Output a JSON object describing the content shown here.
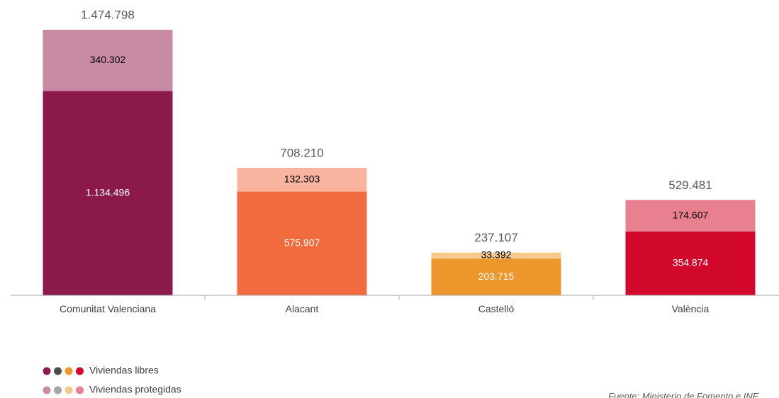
{
  "chart_data": {
    "type": "stacked-bar",
    "categories": [
      "Comunitat Valenciana",
      "Alacant",
      "Castelló",
      "València"
    ],
    "series": [
      {
        "name": "Viviendas libres",
        "colors": [
          "#8b1a4a",
          "#f26b3e",
          "#ec962c",
          "#d2072c"
        ],
        "legend_colors": [
          "#8b1a4a",
          "#4d4d4d",
          "#ec962c",
          "#d2072c"
        ],
        "label_color": "#ffffff",
        "values": [
          1134496,
          575907,
          203715,
          354874
        ],
        "value_labels": [
          "1.134.496",
          "575.907",
          "203.715",
          "354.874"
        ]
      },
      {
        "name": "Viviendas protegidas",
        "colors": [
          "#c98ba4",
          "#f8b49e",
          "#f5c98a",
          "#e8808f"
        ],
        "legend_colors": [
          "#c98ba4",
          "#a6a6a6",
          "#f5c98a",
          "#e8808f"
        ],
        "label_color": "#000000",
        "values": [
          340302,
          132303,
          33392,
          174607
        ],
        "value_labels": [
          "340.302",
          "132.303",
          "33.392",
          "174.607"
        ]
      }
    ],
    "totals": {
      "values": [
        1474798,
        708210,
        237107,
        529481
      ],
      "value_labels": [
        "1.474.798",
        "708.210",
        "237.107",
        "529.481"
      ]
    },
    "ylim": [
      0,
      1500000
    ],
    "source": "Fuente: Ministerio de Fomento e INE"
  }
}
